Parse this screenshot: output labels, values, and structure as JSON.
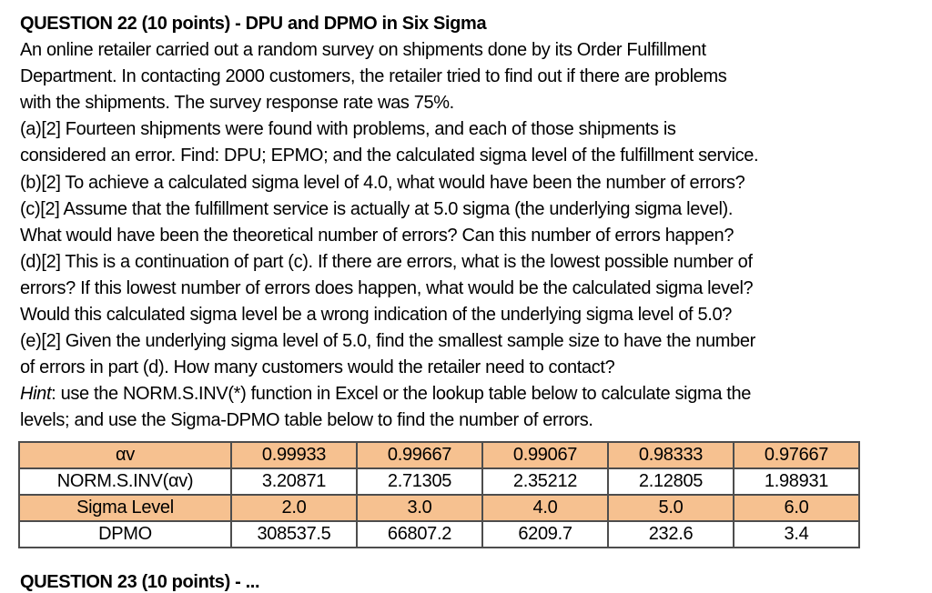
{
  "document": {
    "heading": "QUESTION 22 (10 points) - DPU and DPMO in Six Sigma",
    "paragraph_lines": [
      "An online retailer carried out a random survey on shipments done by its Order Fulfillment",
      "Department. In contacting 2000 customers, the retailer tried to find out if there are problems",
      "with the shipments. The survey response rate was 75%.",
      "(a)[2] Fourteen shipments were found with problems, and each of those shipments is",
      "considered an error. Find: DPU; EPMO; and the calculated sigma level of the fulfillment service.",
      "(b)[2] To achieve a calculated sigma level of 4.0, what would have been the number of errors?",
      "(c)[2] Assume that the fulfillment service is actually at 5.0 sigma (the underlying sigma level).",
      "What would have been the theoretical number of errors? Can this number of errors happen?",
      "(d)[2] This is a continuation of part (c). If there are errors, what is the lowest possible number of",
      "errors? If this lowest number of errors does happen, what would be the calculated sigma level?",
      "Would this calculated sigma level be a wrong indication of the underlying sigma level of 5.0?",
      "(e)[2] Given the underlying sigma level of 5.0, find the smallest sample size to have the number",
      "of errors in part (d). How many customers would the retailer need to contact?"
    ],
    "hint_line_1": {
      "prefix": "Hint",
      "rest": ": use the NORM.S.INV(*) function in Excel or the lookup table below to calculate sigma the"
    },
    "hint_line_2": "levels; and use the Sigma-DPMO table below to find the number of errors."
  },
  "table": {
    "highlight_color": "#f6c190",
    "rows": [
      {
        "label": "αv",
        "highlight": true,
        "values": [
          "0.99933",
          "0.99667",
          "0.99067",
          "0.98333",
          "0.97667"
        ]
      },
      {
        "label": "NORM.S.INV(αv)",
        "highlight": false,
        "values": [
          "3.20871",
          "2.71305",
          "2.35212",
          "2.12805",
          "1.98931"
        ]
      },
      {
        "label": "Sigma Level",
        "highlight": true,
        "values": [
          "2.0",
          "3.0",
          "4.0",
          "5.0",
          "6.0"
        ]
      },
      {
        "label": "DPMO",
        "highlight": false,
        "values": [
          "308537.5",
          "66807.2",
          "6209.7",
          "232.6",
          "3.4"
        ]
      }
    ]
  },
  "footer": {
    "next_question_cutoff": "QUESTION 23 (10 points) - ..."
  }
}
